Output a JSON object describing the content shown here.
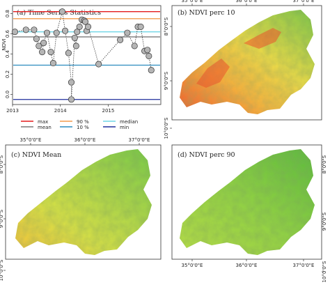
{
  "chart_data": [
    {
      "type": "scatter",
      "title": "(a) Time Series Statistics",
      "ylabel": "NDVI",
      "xlabel": "",
      "x_ticks": [
        "2013",
        "2014",
        "2015"
      ],
      "y_ticks": [
        "0.0",
        "0.2",
        "0.4",
        "0.6",
        "0.8"
      ],
      "xlim": [
        2013.0,
        2016.1
      ],
      "ylim": [
        -0.1,
        0.88
      ],
      "grid": false,
      "legend_position": "below",
      "points": [
        {
          "x": 2013.05,
          "y": 0.62
        },
        {
          "x": 2013.28,
          "y": 0.64
        },
        {
          "x": 2013.45,
          "y": 0.64
        },
        {
          "x": 2013.5,
          "y": 0.55
        },
        {
          "x": 2013.55,
          "y": 0.48
        },
        {
          "x": 2013.62,
          "y": 0.42
        },
        {
          "x": 2013.65,
          "y": 0.51
        },
        {
          "x": 2013.72,
          "y": 0.61
        },
        {
          "x": 2013.8,
          "y": 0.42
        },
        {
          "x": 2013.85,
          "y": 0.31
        },
        {
          "x": 2013.92,
          "y": 0.61
        },
        {
          "x": 2014.04,
          "y": 0.82
        },
        {
          "x": 2014.1,
          "y": 0.63
        },
        {
          "x": 2014.17,
          "y": 0.41
        },
        {
          "x": 2014.23,
          "y": 0.12
        },
        {
          "x": 2014.23,
          "y": -0.05
        },
        {
          "x": 2014.3,
          "y": 0.56
        },
        {
          "x": 2014.33,
          "y": 0.48
        },
        {
          "x": 2014.35,
          "y": 0.62
        },
        {
          "x": 2014.4,
          "y": 0.67
        },
        {
          "x": 2014.45,
          "y": 0.74
        },
        {
          "x": 2014.5,
          "y": 0.73
        },
        {
          "x": 2014.52,
          "y": 0.72
        },
        {
          "x": 2014.55,
          "y": 0.63
        },
        {
          "x": 2014.58,
          "y": 0.67
        },
        {
          "x": 2014.8,
          "y": 0.3
        },
        {
          "x": 2015.25,
          "y": 0.54
        },
        {
          "x": 2015.4,
          "y": 0.61
        },
        {
          "x": 2015.55,
          "y": 0.48
        },
        {
          "x": 2015.62,
          "y": 0.67
        },
        {
          "x": 2015.68,
          "y": 0.67
        },
        {
          "x": 2015.76,
          "y": 0.43
        },
        {
          "x": 2015.82,
          "y": 0.44
        },
        {
          "x": 2015.85,
          "y": 0.38
        },
        {
          "x": 2015.9,
          "y": 0.24
        }
      ],
      "hlines": [
        {
          "name": "max",
          "y": 0.82,
          "color": "#e41a1c"
        },
        {
          "name": "90 %",
          "y": 0.75,
          "color": "#f39c4d"
        },
        {
          "name": "median",
          "y": 0.62,
          "color": "#6fd6e6"
        },
        {
          "name": "mean",
          "y": 0.57,
          "color": "#7a7a7a"
        },
        {
          "name": "10 %",
          "y": 0.29,
          "color": "#2b8cbe"
        },
        {
          "name": "min",
          "y": -0.05,
          "color": "#1f2d9c"
        }
      ],
      "legend": [
        "max",
        "90 %",
        "median",
        "mean",
        "10 %",
        "min"
      ]
    },
    {
      "type": "heatmap",
      "title": "(b) NDVI perc 10",
      "x_ticks": [
        "35°0'0\"E",
        "36°0'0\"E",
        "37°0'0\"E"
      ],
      "y_ticks": [
        "8°0'0\"S",
        "9°0'0\"S",
        "10°0'0\"S"
      ],
      "colors": {
        "low": "#e8432a",
        "mid": "#f5c542",
        "high": "#6cc24a"
      }
    },
    {
      "type": "heatmap",
      "title": "(c) NDVI Mean",
      "x_ticks": [
        "35°0'0\"E",
        "36°0'0\"E",
        "37°0'0\"E"
      ],
      "y_ticks": [
        "8°0'0\"S",
        "9°0'0\"S",
        "10°0'0\"S"
      ],
      "colors": {
        "low": "#f0a030",
        "mid": "#d9e045",
        "high": "#6cc24a"
      }
    },
    {
      "type": "heatmap",
      "title": "(d) NDVI perc 90",
      "x_ticks": [
        "35°0'0\"E",
        "36°0'0\"E",
        "37°0'0\"E"
      ],
      "y_ticks": [
        "8°0'0\"S",
        "9°0'0\"S",
        "10°0'0\"S"
      ],
      "colors": {
        "low": "#b8dd48",
        "mid": "#8fd044",
        "high": "#56b83c"
      }
    }
  ]
}
